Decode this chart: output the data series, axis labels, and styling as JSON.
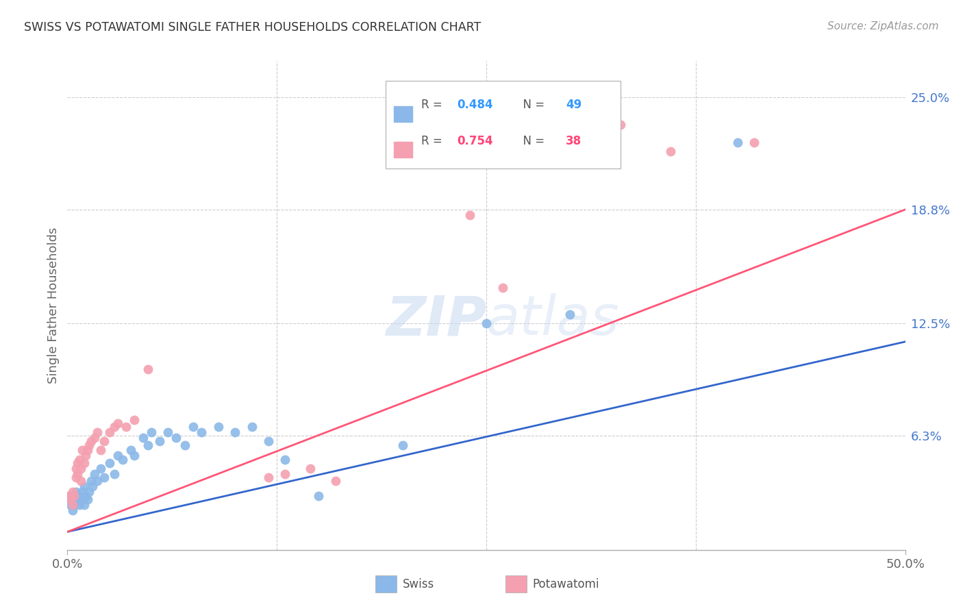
{
  "title": "SWISS VS POTAWATOMI SINGLE FATHER HOUSEHOLDS CORRELATION CHART",
  "source": "Source: ZipAtlas.com",
  "ylabel": "Single Father Households",
  "ytick_labels": [
    "25.0%",
    "18.8%",
    "12.5%",
    "6.3%"
  ],
  "ytick_values": [
    0.25,
    0.188,
    0.125,
    0.063
  ],
  "xlim": [
    0.0,
    0.5
  ],
  "ylim": [
    0.0,
    0.27
  ],
  "watermark_zip": "ZIP",
  "watermark_atlas": "atlas",
  "legend_swiss_R": "0.484",
  "legend_swiss_N": "49",
  "legend_pota_R": "0.754",
  "legend_pota_N": "38",
  "swiss_color": "#8BB8E8",
  "pota_color": "#F4A0B0",
  "swiss_line_color": "#3366CC",
  "pota_line_color": "#FF5577",
  "legend_R_color_swiss": "#3399FF",
  "legend_R_color_pota": "#FF4477",
  "swiss_x": [
    0.001,
    0.002,
    0.003,
    0.003,
    0.004,
    0.004,
    0.005,
    0.005,
    0.006,
    0.007,
    0.007,
    0.008,
    0.009,
    0.01,
    0.01,
    0.011,
    0.012,
    0.013,
    0.014,
    0.015,
    0.016,
    0.018,
    0.02,
    0.022,
    0.025,
    0.028,
    0.03,
    0.033,
    0.038,
    0.04,
    0.045,
    0.048,
    0.05,
    0.055,
    0.06,
    0.065,
    0.07,
    0.075,
    0.08,
    0.09,
    0.1,
    0.11,
    0.12,
    0.13,
    0.15,
    0.2,
    0.25,
    0.3,
    0.4
  ],
  "swiss_y": [
    0.03,
    0.025,
    0.028,
    0.022,
    0.03,
    0.025,
    0.032,
    0.027,
    0.028,
    0.03,
    0.025,
    0.028,
    0.032,
    0.025,
    0.035,
    0.03,
    0.028,
    0.032,
    0.038,
    0.035,
    0.042,
    0.038,
    0.045,
    0.04,
    0.048,
    0.042,
    0.052,
    0.05,
    0.055,
    0.052,
    0.062,
    0.058,
    0.065,
    0.06,
    0.065,
    0.062,
    0.058,
    0.068,
    0.065,
    0.068,
    0.065,
    0.068,
    0.06,
    0.05,
    0.03,
    0.058,
    0.125,
    0.13,
    0.225
  ],
  "pota_x": [
    0.001,
    0.002,
    0.003,
    0.003,
    0.004,
    0.005,
    0.005,
    0.006,
    0.006,
    0.007,
    0.008,
    0.008,
    0.009,
    0.01,
    0.011,
    0.012,
    0.013,
    0.014,
    0.016,
    0.018,
    0.02,
    0.022,
    0.025,
    0.028,
    0.03,
    0.035,
    0.04,
    0.048,
    0.12,
    0.13,
    0.145,
    0.16,
    0.24,
    0.26,
    0.28,
    0.33,
    0.36,
    0.41
  ],
  "pota_y": [
    0.03,
    0.028,
    0.032,
    0.025,
    0.03,
    0.045,
    0.04,
    0.042,
    0.048,
    0.05,
    0.038,
    0.045,
    0.055,
    0.048,
    0.052,
    0.055,
    0.058,
    0.06,
    0.062,
    0.065,
    0.055,
    0.06,
    0.065,
    0.068,
    0.07,
    0.068,
    0.072,
    0.1,
    0.04,
    0.042,
    0.045,
    0.038,
    0.185,
    0.145,
    0.22,
    0.235,
    0.22,
    0.225
  ],
  "swiss_line_x": [
    0.0,
    0.5
  ],
  "swiss_line_y": [
    0.01,
    0.115
  ],
  "pota_line_x": [
    0.0,
    0.5
  ],
  "pota_line_y": [
    0.01,
    0.188
  ],
  "background_color": "#FFFFFF",
  "grid_color": "#CCCCCC",
  "title_color": "#333333",
  "axis_label_color": "#666666",
  "ytick_color": "#4477CC",
  "xtick_color": "#666666"
}
